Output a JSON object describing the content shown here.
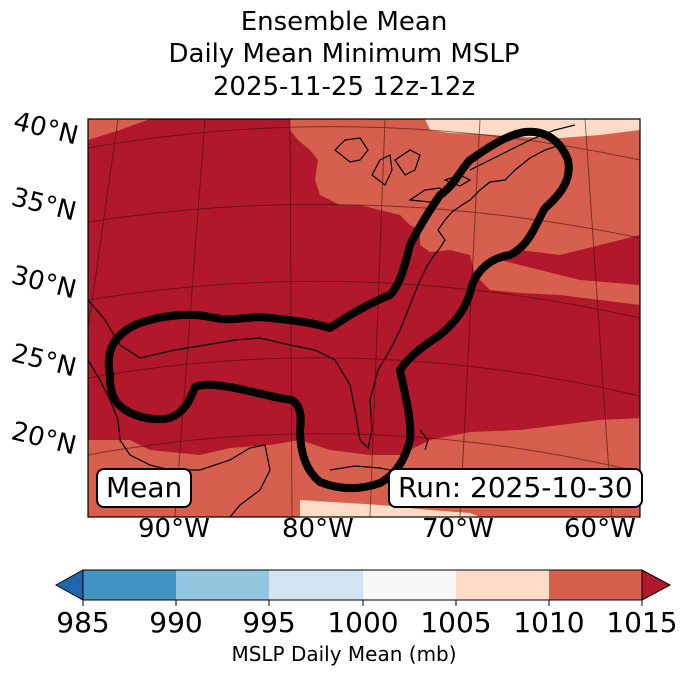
{
  "title": {
    "line1": "Ensemble Mean",
    "line2": "Daily Mean Minimum MSLP",
    "line3": "2025-11-25 12z-12z"
  },
  "map": {
    "latitude_labels": [
      "40°N",
      "35°N",
      "30°N",
      "25°N",
      "20°N"
    ],
    "longitude_labels": [
      "90°W",
      "80°W",
      "70°W",
      "60°W"
    ],
    "contour_color": "#000000",
    "fill_colors": {
      "1005_1010": "#fddbc7",
      "1010_1015": "#d6604d",
      "above_1015": "#b2182b"
    }
  },
  "insets": {
    "mean_label": "Mean",
    "run_label": "Run: 2025-10-30"
  },
  "colorbar": {
    "label": "MSLP Daily Mean (mb)",
    "ticks": [
      "985",
      "990",
      "995",
      "1000",
      "1005",
      "1010",
      "1015"
    ],
    "colors": {
      "below_985": "#2166ac",
      "985_990": "#4393c3",
      "990_995": "#92c5de",
      "995_1000": "#d1e5f0",
      "1000_1005": "#f7f7f7",
      "1005_1010": "#fddbc7",
      "1010_1015": "#d6604d",
      "above_1015": "#b2182b"
    }
  }
}
